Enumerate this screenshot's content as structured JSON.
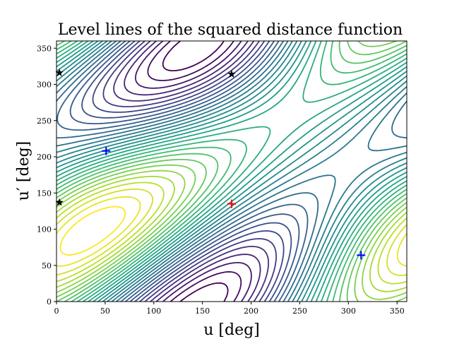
{
  "chart_data": {
    "type": "contour",
    "title": "Level lines of the squared distance function",
    "xlabel": "u [deg]",
    "ylabel": "u′ [deg]",
    "xlim": [
      0,
      360
    ],
    "ylim": [
      0,
      360
    ],
    "xticks": [
      0,
      50,
      100,
      150,
      200,
      250,
      300,
      350
    ],
    "yticks": [
      0,
      50,
      100,
      150,
      200,
      250,
      300,
      350
    ],
    "colormap": "viridis",
    "level_count": 30,
    "grid": false,
    "markers": [
      {
        "kind": "red-plus",
        "color": "#ff0000",
        "symbol": "+",
        "x": 180,
        "y": 135
      },
      {
        "kind": "blue-plus",
        "color": "#0000ff",
        "symbol": "+",
        "x": 51,
        "y": 208
      },
      {
        "kind": "blue-plus",
        "color": "#0000ff",
        "symbol": "+",
        "x": 313,
        "y": 64
      },
      {
        "kind": "black-star",
        "color": "#000000",
        "symbol": "★",
        "x": 180,
        "y": 314
      },
      {
        "kind": "black-star",
        "color": "#000000",
        "symbol": "★",
        "x": 3,
        "y": 316
      },
      {
        "kind": "black-star",
        "color": "#000000",
        "symbol": "★",
        "x": 3,
        "y": 137
      }
    ]
  }
}
